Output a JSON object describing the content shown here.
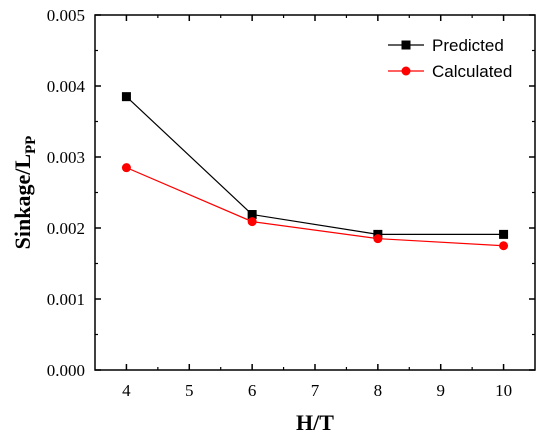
{
  "chart_data": {
    "type": "line",
    "title": "",
    "xlabel": "H/T",
    "ylabel_main": "Sinkage/L",
    "ylabel_sub": "PP",
    "xlim": [
      3.5,
      10.5
    ],
    "ylim": [
      0,
      0.005
    ],
    "xticks": [
      4,
      5,
      6,
      7,
      8,
      9,
      10
    ],
    "yticks": [
      0,
      0.001,
      0.002,
      0.003,
      0.004,
      0.005
    ],
    "ytick_labels": [
      "0.000",
      "0.001",
      "0.002",
      "0.003",
      "0.004",
      "0.005"
    ],
    "grid": false,
    "legend_position": "top-right",
    "series": [
      {
        "name": "Predicted",
        "marker": "square",
        "color": "#000000",
        "x": [
          4,
          6,
          8,
          10
        ],
        "y": [
          0.00385,
          0.00219,
          0.00191,
          0.00191
        ]
      },
      {
        "name": "Calculated",
        "marker": "circle",
        "color": "#ff0000",
        "x": [
          4,
          6,
          8,
          10
        ],
        "y": [
          0.00285,
          0.00209,
          0.00185,
          0.00175
        ]
      }
    ]
  }
}
